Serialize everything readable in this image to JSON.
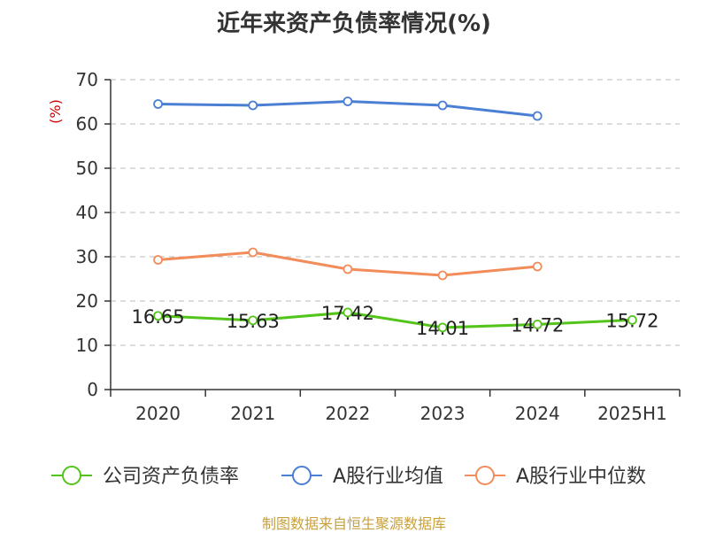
{
  "chart_data": {
    "type": "line",
    "title": "近年来资产负债率情况(%)",
    "ylabel": "(%)",
    "xlabel": "",
    "categories": [
      "2020",
      "2021",
      "2022",
      "2023",
      "2024",
      "2025H1"
    ],
    "ylim": [
      0,
      70
    ],
    "yticks": [
      0,
      10,
      20,
      30,
      40,
      50,
      60,
      70
    ],
    "grid": true,
    "legend_position": "bottom",
    "series": [
      {
        "name": "公司资产负债率",
        "color": "#52c41a",
        "values": [
          16.65,
          15.63,
          17.42,
          14.01,
          14.72,
          15.72
        ],
        "labels": [
          "16.65",
          "15.63",
          "17.42",
          "14.01",
          "14.72",
          "15.72"
        ]
      },
      {
        "name": "A股行业均值",
        "color": "#4a7fd4",
        "values": [
          64.5,
          64.2,
          65.1,
          64.2,
          61.8,
          null
        ]
      },
      {
        "name": "A股行业中位数",
        "color": "#f28c5a",
        "values": [
          29.3,
          31.0,
          27.2,
          25.8,
          27.8,
          null
        ]
      }
    ]
  },
  "source": "制图数据来自恒生聚源数据库"
}
